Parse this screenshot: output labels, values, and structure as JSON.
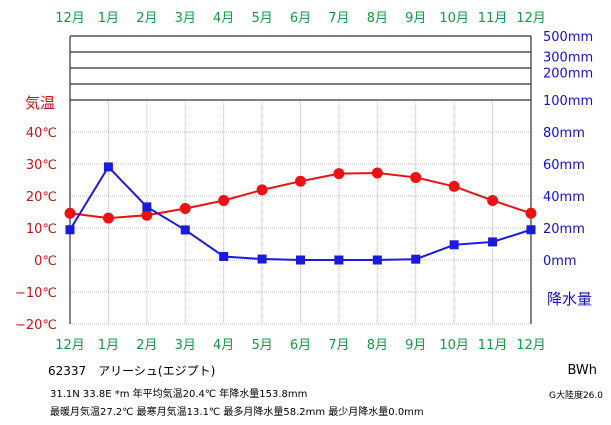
{
  "chart_data": {
    "type": "line",
    "categories": [
      "12月",
      "1月",
      "2月",
      "3月",
      "4月",
      "5月",
      "6月",
      "7月",
      "8月",
      "9月",
      "10月",
      "11月",
      "12月"
    ],
    "series": [
      {
        "name": "気温",
        "axis": "left",
        "color": "#ee1111",
        "marker": "circle",
        "values": [
          14.6,
          13.1,
          14.0,
          16.1,
          18.6,
          21.9,
          24.6,
          27.0,
          27.2,
          25.8,
          23.0,
          18.6,
          14.6
        ]
      },
      {
        "name": "降水量",
        "axis": "right",
        "color": "#1a1adc",
        "marker": "square",
        "values": [
          18.9,
          58.2,
          33.2,
          18.8,
          2.2,
          0.6,
          0.0,
          0.0,
          0.0,
          0.5,
          9.5,
          11.3,
          18.9
        ]
      }
    ],
    "left_axis": {
      "label": "気温",
      "color": "#cc1111",
      "ticks": [
        "40℃",
        "30℃",
        "20℃",
        "10℃",
        "0℃",
        "−10℃",
        "−20℃"
      ],
      "tick_values": [
        40,
        30,
        20,
        10,
        0,
        -10,
        -20
      ],
      "ylim": [
        -20,
        40
      ]
    },
    "right_axis": {
      "label": "降水量",
      "color": "#1111cc",
      "ticks": [
        "500mm",
        "300mm",
        "200mm",
        "100mm",
        "80mm",
        "60mm",
        "40mm",
        "20mm",
        "0mm"
      ],
      "tick_values": [
        500,
        300,
        200,
        100,
        80,
        60,
        40,
        20,
        0
      ],
      "ylim": [
        0,
        500
      ]
    },
    "month_label_color": "#119944",
    "grid": true
  },
  "info": {
    "station": "62337　アリーシュ(エジプト)",
    "coords": "31.1N  33.8E  *m  年平均気温20.4℃  年降水量153.8mm",
    "extremes": "最暖月気温27.2℃ 最寒月気温13.1℃ 最多月降水量58.2mm 最少月降水量0.0mm",
    "climate_code": "BWh",
    "climatology": "G大陸度26.0"
  }
}
